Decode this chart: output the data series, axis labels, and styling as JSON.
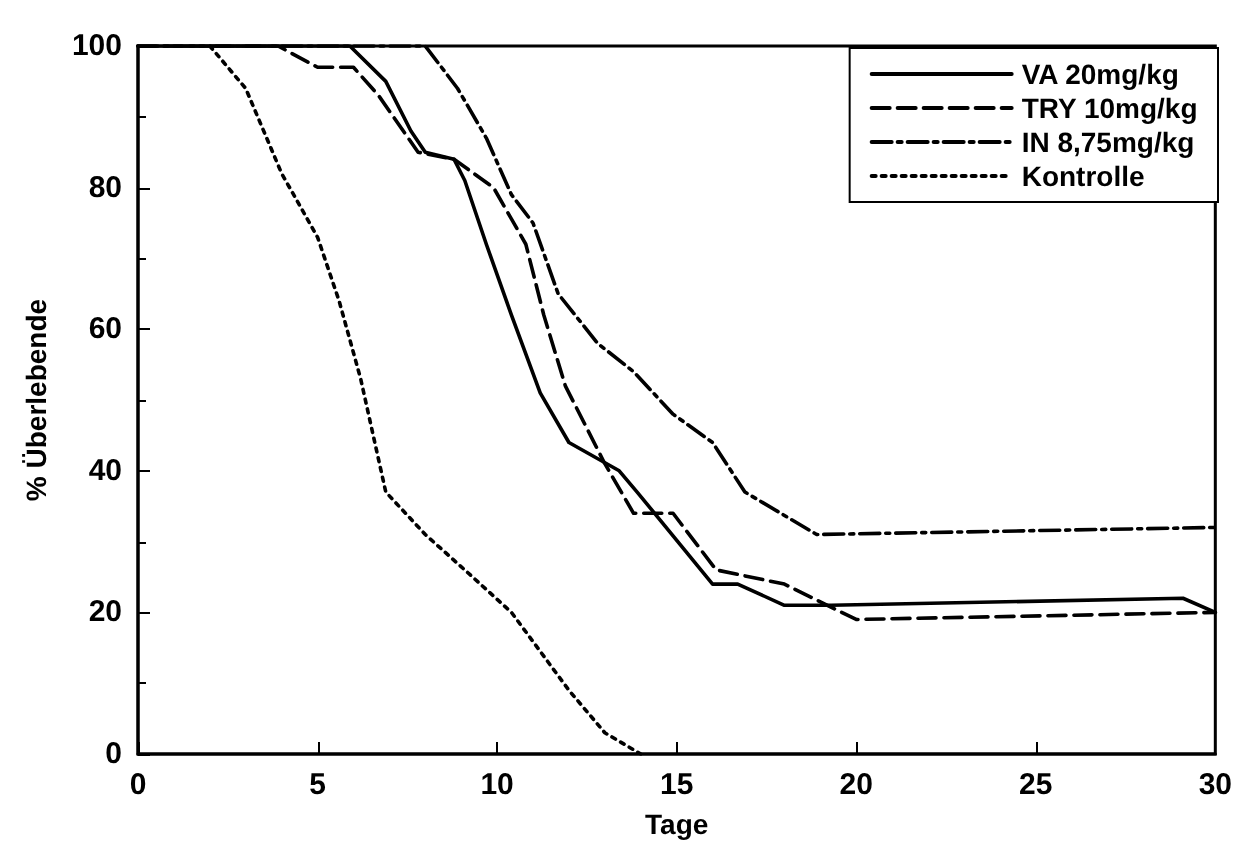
{
  "chart_data": {
    "type": "line",
    "xlabel": "Tage",
    "ylabel": "% Überlebende",
    "xlim": [
      0,
      30
    ],
    "xticks": [
      0,
      5,
      10,
      15,
      20,
      25,
      30
    ],
    "ylim": [
      0,
      100
    ],
    "yticks": [
      0,
      20,
      40,
      60,
      80,
      100
    ],
    "grid": false,
    "legend": "top right",
    "marker": "none",
    "series": [
      {
        "name": "VA 20mg/kg",
        "color": "#000000",
        "line_style": "solid",
        "x": [
          0,
          5.9,
          6.9,
          7.6,
          8,
          8.8,
          9.1,
          9.7,
          10.4,
          11.2,
          12,
          13.4,
          13.9,
          16,
          16.7,
          18,
          19.3,
          29.1,
          30
        ],
        "values": [
          100,
          100,
          95,
          88,
          85,
          84,
          81,
          72,
          62,
          51,
          44,
          40,
          37,
          24,
          24,
          21,
          21,
          22,
          20
        ]
      },
      {
        "name": "TRY 10mg/kg",
        "color": "#000000",
        "line_style": "dashed",
        "x": [
          0,
          3.9,
          5,
          6,
          6.7,
          7.8,
          8.8,
          9.9,
          10.8,
          11.3,
          11.9,
          13,
          13.8,
          14.9,
          16.1,
          18,
          20,
          30
        ],
        "values": [
          100,
          100,
          97,
          97,
          93,
          85,
          84,
          80,
          72,
          62,
          52,
          41,
          34,
          34,
          26,
          24,
          19,
          20
        ]
      },
      {
        "name": "IN 8,75mg/kg",
        "color": "#000000",
        "line_style": "dashdot",
        "x": [
          0,
          8,
          8.9,
          9.7,
          10.4,
          11,
          11.7,
          12.8,
          13.8,
          14.9,
          16,
          16.9,
          18.9,
          30
        ],
        "values": [
          100,
          100,
          94,
          87,
          79,
          75,
          65,
          58,
          54,
          48,
          44,
          37,
          31,
          32
        ]
      },
      {
        "name": "Kontrolle",
        "color": "#000000",
        "line_style": "dotted",
        "x": [
          2,
          3,
          4,
          5,
          5.6,
          6.2,
          6.9,
          8,
          9.1,
          10.4,
          12,
          13,
          14
        ],
        "values": [
          100,
          94,
          82,
          73,
          64,
          53,
          37,
          31,
          26,
          20,
          9,
          3,
          0
        ]
      }
    ]
  }
}
